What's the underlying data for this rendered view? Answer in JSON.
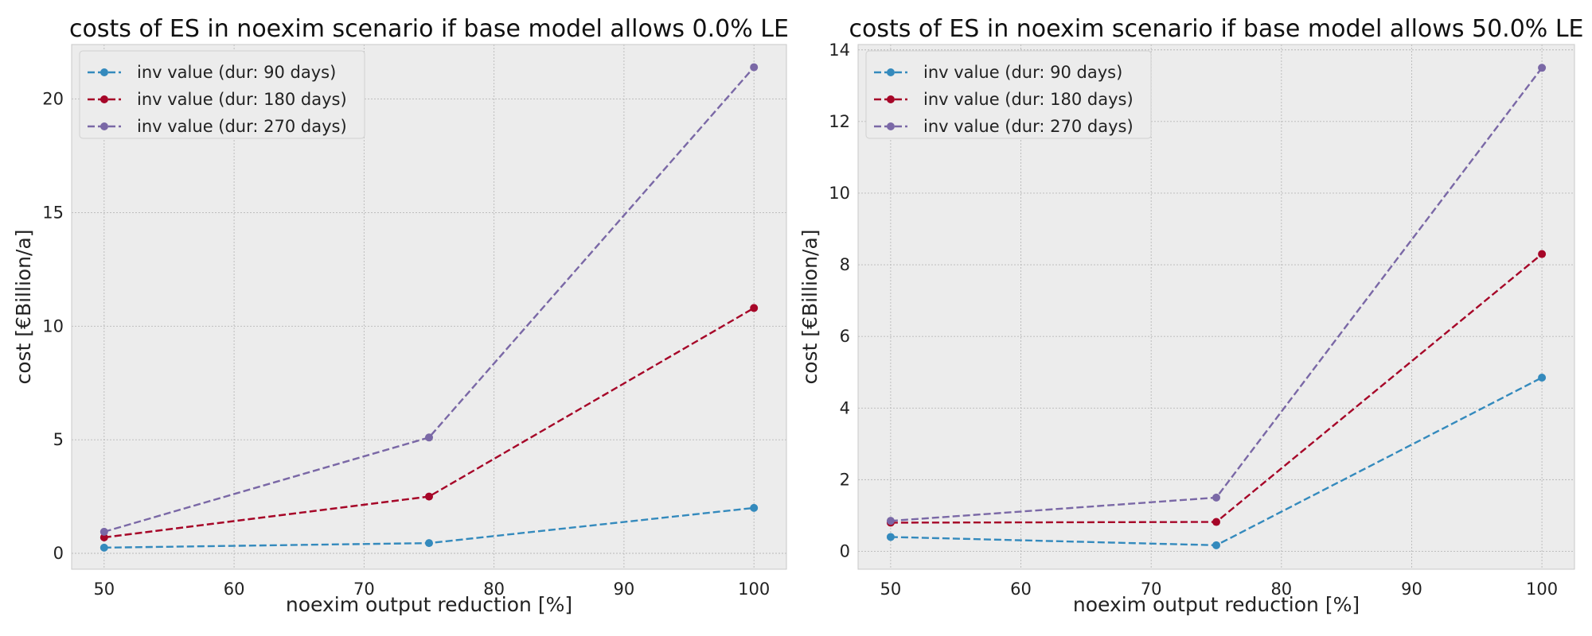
{
  "chart_data": [
    {
      "type": "line",
      "title": "costs of ES in noexim scenario if base model allows 0.0% LE",
      "xlabel": "noexim output reduction [%]",
      "ylabel": "cost [€Billion/a]",
      "x": [
        50,
        75,
        100
      ],
      "xlim": [
        47.5,
        102.5
      ],
      "ylim": [
        -0.7,
        22.4
      ],
      "xticks": [
        50,
        60,
        70,
        80,
        90,
        100
      ],
      "yticks": [
        0,
        5,
        10,
        15,
        20
      ],
      "grid": true,
      "legend_position": "top-left",
      "series": [
        {
          "name": "inv value (dur: 90 days)",
          "values": [
            0.25,
            0.45,
            2.0
          ],
          "color": "#348ABD"
        },
        {
          "name": "inv value (dur: 180 days)",
          "values": [
            0.7,
            2.5,
            10.8
          ],
          "color": "#A60628"
        },
        {
          "name": "inv value (dur: 270 days)",
          "values": [
            0.95,
            5.1,
            21.4
          ],
          "color": "#7A68A6"
        }
      ]
    },
    {
      "type": "line",
      "title": "costs of ES in noexim scenario if base model allows 50.0% LE",
      "xlabel": "noexim output reduction [%]",
      "ylabel": "cost [€Billion/a]",
      "x": [
        50,
        75,
        100
      ],
      "xlim": [
        47.5,
        102.5
      ],
      "ylim": [
        -0.5,
        14.15
      ],
      "xticks": [
        50,
        60,
        70,
        80,
        90,
        100
      ],
      "yticks": [
        0,
        2,
        4,
        6,
        8,
        10,
        12,
        14
      ],
      "grid": true,
      "legend_position": "top-left",
      "series": [
        {
          "name": "inv value (dur: 90 days)",
          "values": [
            0.4,
            0.17,
            4.85
          ],
          "color": "#348ABD"
        },
        {
          "name": "inv value (dur: 180 days)",
          "values": [
            0.8,
            0.82,
            8.3
          ],
          "color": "#A60628"
        },
        {
          "name": "inv value (dur: 270 days)",
          "values": [
            0.85,
            1.5,
            13.5
          ],
          "color": "#7A68A6"
        }
      ]
    }
  ]
}
